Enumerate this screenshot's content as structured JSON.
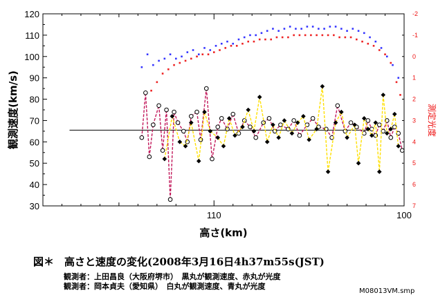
{
  "chart_data": {
    "type": "scatter",
    "title": "",
    "xlabel": "高さ(km)",
    "ylabel": "観測速度(km/s)",
    "y2label": "測定光度",
    "xlim": [
      119,
      100
    ],
    "x_ticks": [
      110,
      100
    ],
    "ylim": [
      30,
      120
    ],
    "y_ticks": [
      30,
      40,
      50,
      60,
      70,
      80,
      90,
      100,
      110,
      120
    ],
    "y2lim": [
      -2,
      7
    ],
    "y2_ticks": [
      -2,
      -1,
      0,
      1,
      2,
      3,
      4,
      5,
      6,
      7
    ],
    "y2_inverted": true,
    "mean_velocity_line": {
      "y": 65.5,
      "x_from": 117.6,
      "x_to": 101.9
    },
    "series": [
      {
        "kind": "velocity",
        "marker": "open-circle",
        "connector_color": "#c2185b",
        "x": [
          113.8,
          113.6,
          113.4,
          113.2,
          112.9,
          112.7,
          112.5,
          112.3,
          112.1,
          111.9,
          111.6,
          111.4,
          111.2,
          110.9,
          110.7,
          110.4,
          110.1,
          109.8,
          109.6,
          109.3,
          109.0,
          108.7,
          108.4,
          108.1,
          107.8,
          107.4,
          107.1,
          106.8,
          106.5,
          106.1,
          105.8,
          105.5,
          105.1,
          104.8,
          104.5,
          104.1,
          103.8,
          103.5,
          103.1,
          102.8,
          102.5,
          102.1,
          101.9,
          101.7,
          101.5,
          101.3,
          101.1,
          100.9,
          100.7,
          100.5,
          100.3,
          100.1
        ],
        "y": [
          62,
          83,
          53,
          68,
          77,
          56,
          75,
          33,
          74,
          69,
          65,
          60,
          72,
          74,
          61,
          85,
          52,
          67,
          71,
          66,
          73,
          64,
          70,
          67,
          62,
          69,
          71,
          65,
          68,
          66,
          70,
          63,
          68,
          71,
          67,
          66,
          62,
          77,
          65,
          69,
          67,
          64,
          70,
          66,
          63,
          68,
          65,
          70,
          62,
          67,
          64,
          56
        ]
      },
      {
        "kind": "velocity",
        "marker": "filled-diamond",
        "connector_color": "#ffe000",
        "x": [
          112.6,
          112.2,
          111.8,
          111.5,
          111.2,
          110.8,
          110.5,
          110.2,
          109.8,
          109.5,
          109.2,
          108.9,
          108.5,
          108.2,
          107.9,
          107.6,
          107.2,
          106.9,
          106.6,
          106.3,
          105.9,
          105.6,
          105.3,
          105.0,
          104.6,
          104.3,
          104.0,
          103.6,
          103.3,
          103.0,
          102.6,
          102.4,
          102.1,
          101.9,
          101.7,
          101.5,
          101.3,
          101.1,
          100.9,
          100.7,
          100.5,
          100.3
        ],
        "y": [
          52,
          72,
          60,
          58,
          69,
          51,
          74,
          65,
          62,
          58,
          71,
          63,
          67,
          75,
          65,
          81,
          60,
          68,
          62,
          70,
          64,
          69,
          72,
          61,
          66,
          86,
          46,
          69,
          74,
          62,
          68,
          50,
          71,
          66,
          63,
          69,
          46,
          82,
          64,
          66,
          73,
          58
        ]
      },
      {
        "kind": "magnitude",
        "marker": "small-square",
        "color": "#3333ff",
        "x": [
          113.8,
          113.5,
          113.2,
          112.9,
          112.6,
          112.3,
          112.0,
          111.7,
          111.4,
          111.1,
          110.8,
          110.5,
          110.2,
          109.9,
          109.6,
          109.3,
          109.0,
          108.7,
          108.4,
          108.1,
          107.8,
          107.5,
          107.2,
          106.9,
          106.6,
          106.3,
          106.0,
          105.7,
          105.4,
          105.1,
          104.8,
          104.5,
          104.2,
          103.9,
          103.6,
          103.3,
          103.0,
          102.7,
          102.4,
          102.1,
          101.8,
          101.5,
          101.2,
          100.9,
          100.6,
          100.3
        ],
        "y": [
          0.5,
          -0.1,
          0.4,
          0.2,
          0.1,
          -0.1,
          0.1,
          0.0,
          -0.2,
          -0.3,
          -0.1,
          -0.4,
          -0.3,
          -0.5,
          -0.6,
          -0.7,
          -0.6,
          -0.8,
          -0.9,
          -1.0,
          -1.0,
          -1.1,
          -1.2,
          -1.3,
          -1.2,
          -1.3,
          -1.4,
          -1.3,
          -1.3,
          -1.4,
          -1.4,
          -1.3,
          -1.3,
          -1.4,
          -1.4,
          -1.3,
          -1.2,
          -1.3,
          -1.2,
          -1.1,
          -0.9,
          -0.7,
          -0.4,
          0.0,
          0.4,
          1.0
        ]
      },
      {
        "kind": "magnitude",
        "marker": "small-square",
        "color": "#ee2222",
        "x": [
          113.3,
          113.0,
          112.7,
          112.4,
          112.1,
          111.8,
          111.5,
          111.2,
          110.9,
          110.6,
          110.3,
          110.0,
          109.7,
          109.4,
          109.1,
          108.8,
          108.5,
          108.2,
          107.9,
          107.6,
          107.3,
          107.0,
          106.7,
          106.4,
          106.1,
          105.8,
          105.5,
          105.2,
          104.9,
          104.6,
          104.3,
          104.0,
          103.7,
          103.4,
          103.1,
          102.8,
          102.5,
          102.2,
          101.9,
          101.6,
          101.3,
          101.0,
          100.7,
          100.4,
          100.2
        ],
        "y": [
          1.6,
          1.2,
          0.8,
          0.6,
          0.4,
          0.3,
          0.2,
          0.1,
          0.0,
          -0.1,
          -0.1,
          -0.2,
          -0.3,
          -0.4,
          -0.5,
          -0.5,
          -0.6,
          -0.7,
          -0.7,
          -0.8,
          -0.8,
          -0.8,
          -0.9,
          -0.9,
          -0.9,
          -1.0,
          -1.0,
          -1.0,
          -1.0,
          -1.0,
          -1.0,
          -1.0,
          -1.0,
          -0.9,
          -0.9,
          -0.9,
          -0.8,
          -0.7,
          -0.6,
          -0.5,
          -0.3,
          -0.1,
          0.3,
          1.2,
          1.8
        ]
      }
    ]
  },
  "caption": {
    "main": "図＊　高さと速度の変化(2008年3月16日4h37m55s(JST)",
    "observer1": "観測者：上田昌良（大阪府堺市）　黒丸が観測速度、赤丸が光度",
    "observer2": "観測者：岡本貞夫（愛知県）　白丸が観測速度、青丸が光度",
    "filename": "M08013VM.smp"
  },
  "colors": {
    "axis": "#000000",
    "right_axis": "#ee1111",
    "mean_line": "#000000"
  }
}
